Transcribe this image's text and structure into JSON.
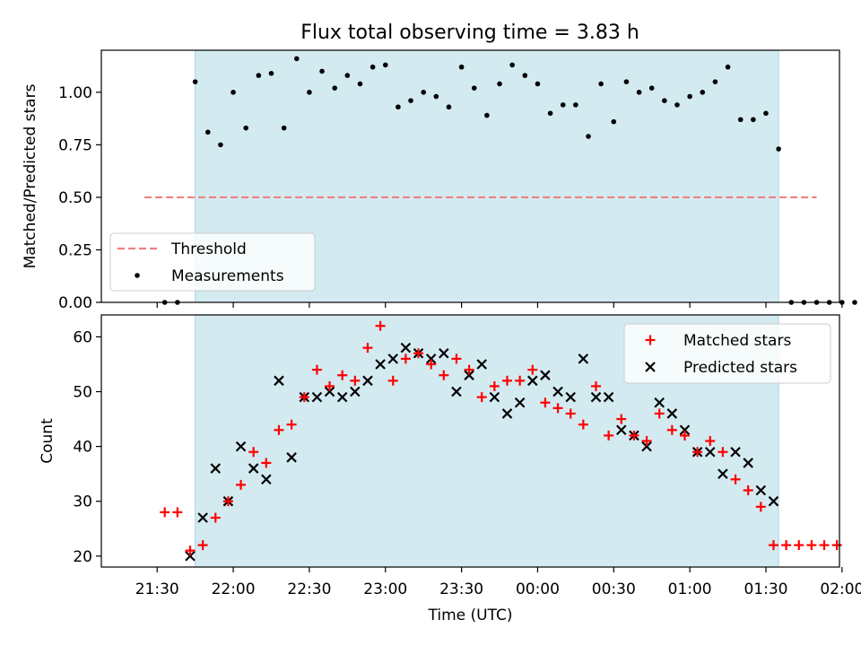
{
  "chart_data": [
    {
      "type": "scatter",
      "title": "Flux total observing time = 3.83 h",
      "xlabel": "",
      "ylabel": "Matched/Predicted stars",
      "ylim": [
        0,
        1.2
      ],
      "y_ticks": [
        "0.00",
        "0.25",
        "0.50",
        "0.75",
        "1.00"
      ],
      "x_range_minutes": [
        -22,
        269
      ],
      "observing_window_minutes": [
        15,
        245
      ],
      "observing_window_color": "#d3eaf1",
      "legend_position": "lower-left",
      "threshold": {
        "name": "Threshold",
        "value": 0.5,
        "x_from": -5,
        "x_to": 260,
        "color": "#f08080"
      },
      "series": [
        {
          "name": "Measurements",
          "color": "#000000",
          "points": [
            [
              3,
              0.0
            ],
            [
              8,
              0.0
            ],
            [
              15,
              1.05
            ],
            [
              20,
              0.81
            ],
            [
              25,
              0.75
            ],
            [
              30,
              1.0
            ],
            [
              35,
              0.83
            ],
            [
              40,
              1.08
            ],
            [
              45,
              1.09
            ],
            [
              50,
              0.83
            ],
            [
              55,
              1.16
            ],
            [
              60,
              1.0
            ],
            [
              65,
              1.1
            ],
            [
              70,
              1.02
            ],
            [
              75,
              1.08
            ],
            [
              80,
              1.04
            ],
            [
              85,
              1.12
            ],
            [
              90,
              1.13
            ],
            [
              95,
              0.93
            ],
            [
              100,
              0.96
            ],
            [
              105,
              1.0
            ],
            [
              110,
              0.98
            ],
            [
              115,
              0.93
            ],
            [
              120,
              1.12
            ],
            [
              125,
              1.02
            ],
            [
              130,
              0.89
            ],
            [
              135,
              1.04
            ],
            [
              140,
              1.13
            ],
            [
              145,
              1.08
            ],
            [
              150,
              1.04
            ],
            [
              155,
              0.9
            ],
            [
              160,
              0.94
            ],
            [
              165,
              0.94
            ],
            [
              170,
              0.79
            ],
            [
              175,
              1.04
            ],
            [
              180,
              0.86
            ],
            [
              185,
              1.05
            ],
            [
              190,
              1.0
            ],
            [
              195,
              1.02
            ],
            [
              200,
              0.96
            ],
            [
              205,
              0.94
            ],
            [
              210,
              0.98
            ],
            [
              215,
              1.0
            ],
            [
              220,
              1.05
            ],
            [
              225,
              1.12
            ],
            [
              230,
              0.87
            ],
            [
              235,
              0.87
            ],
            [
              240,
              0.9
            ],
            [
              245,
              0.73
            ],
            [
              250,
              0.0
            ],
            [
              255,
              0.0
            ],
            [
              260,
              0.0
            ],
            [
              265,
              0.0
            ],
            [
              270,
              0.0
            ],
            [
              275,
              0.0
            ]
          ]
        }
      ]
    },
    {
      "type": "scatter",
      "title": "",
      "xlabel": "Time (UTC)",
      "ylabel": "Count",
      "ylim": [
        18,
        64
      ],
      "y_ticks": [
        "20",
        "30",
        "40",
        "50",
        "60"
      ],
      "x_range_minutes": [
        -22,
        269
      ],
      "x_ticks": [
        {
          "m": 0,
          "label": "21:30"
        },
        {
          "m": 30,
          "label": "22:00"
        },
        {
          "m": 60,
          "label": "22:30"
        },
        {
          "m": 90,
          "label": "23:00"
        },
        {
          "m": 120,
          "label": "23:30"
        },
        {
          "m": 150,
          "label": "00:00"
        },
        {
          "m": 180,
          "label": "00:30"
        },
        {
          "m": 210,
          "label": "01:00"
        },
        {
          "m": 240,
          "label": "01:30"
        },
        {
          "m": 270,
          "label": "02:00"
        }
      ],
      "observing_window_minutes": [
        15,
        245
      ],
      "observing_window_color": "#d3eaf1",
      "legend_position": "upper-right",
      "series": [
        {
          "name": "Matched stars",
          "marker": "+",
          "color": "#ff0000",
          "points": [
            [
              3,
              28
            ],
            [
              8,
              28
            ],
            [
              13,
              21
            ],
            [
              18,
              22
            ],
            [
              23,
              27
            ],
            [
              28,
              30
            ],
            [
              33,
              33
            ],
            [
              38,
              39
            ],
            [
              43,
              37
            ],
            [
              48,
              43
            ],
            [
              53,
              44
            ],
            [
              58,
              49
            ],
            [
              63,
              54
            ],
            [
              68,
              51
            ],
            [
              73,
              53
            ],
            [
              78,
              52
            ],
            [
              83,
              58
            ],
            [
              88,
              62
            ],
            [
              93,
              52
            ],
            [
              98,
              56
            ],
            [
              103,
              57
            ],
            [
              108,
              55
            ],
            [
              113,
              53
            ],
            [
              118,
              56
            ],
            [
              123,
              54
            ],
            [
              128,
              49
            ],
            [
              133,
              51
            ],
            [
              138,
              52
            ],
            [
              143,
              52
            ],
            [
              148,
              54
            ],
            [
              153,
              48
            ],
            [
              158,
              47
            ],
            [
              163,
              46
            ],
            [
              168,
              44
            ],
            [
              173,
              51
            ],
            [
              178,
              42
            ],
            [
              183,
              45
            ],
            [
              188,
              42
            ],
            [
              193,
              41
            ],
            [
              198,
              46
            ],
            [
              203,
              43
            ],
            [
              208,
              42
            ],
            [
              213,
              39
            ],
            [
              218,
              41
            ],
            [
              223,
              39
            ],
            [
              228,
              34
            ],
            [
              233,
              32
            ],
            [
              238,
              29
            ],
            [
              243,
              22
            ],
            [
              248,
              22
            ],
            [
              253,
              22
            ],
            [
              258,
              22
            ],
            [
              263,
              22
            ],
            [
              268,
              22
            ]
          ]
        },
        {
          "name": "Predicted stars",
          "marker": "x",
          "color": "#000000",
          "points": [
            [
              13,
              20
            ],
            [
              18,
              27
            ],
            [
              23,
              36
            ],
            [
              28,
              30
            ],
            [
              33,
              40
            ],
            [
              38,
              36
            ],
            [
              43,
              34
            ],
            [
              48,
              52
            ],
            [
              53,
              38
            ],
            [
              58,
              49
            ],
            [
              63,
              49
            ],
            [
              68,
              50
            ],
            [
              73,
              49
            ],
            [
              78,
              50
            ],
            [
              83,
              52
            ],
            [
              88,
              55
            ],
            [
              93,
              56
            ],
            [
              98,
              58
            ],
            [
              103,
              57
            ],
            [
              108,
              56
            ],
            [
              113,
              57
            ],
            [
              118,
              50
            ],
            [
              123,
              53
            ],
            [
              128,
              55
            ],
            [
              133,
              49
            ],
            [
              138,
              46
            ],
            [
              143,
              48
            ],
            [
              148,
              52
            ],
            [
              153,
              53
            ],
            [
              158,
              50
            ],
            [
              163,
              49
            ],
            [
              168,
              56
            ],
            [
              173,
              49
            ],
            [
              178,
              49
            ],
            [
              183,
              43
            ],
            [
              188,
              42
            ],
            [
              193,
              40
            ],
            [
              198,
              48
            ],
            [
              203,
              46
            ],
            [
              208,
              43
            ],
            [
              213,
              39
            ],
            [
              218,
              39
            ],
            [
              223,
              35
            ],
            [
              228,
              39
            ],
            [
              233,
              37
            ],
            [
              238,
              32
            ],
            [
              243,
              30
            ]
          ]
        }
      ]
    }
  ]
}
